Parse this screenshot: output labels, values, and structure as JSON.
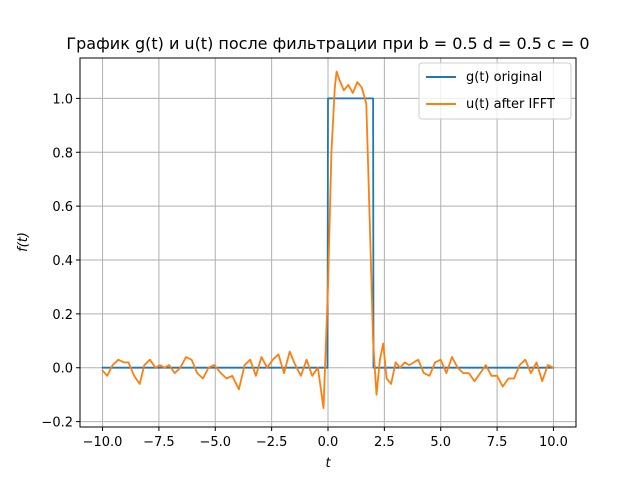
{
  "chart_data": {
    "type": "line",
    "title": "График g(t) и u(t) после фильтрации при b = 0.5 d = 0.5 c = 0",
    "xlabel": "t",
    "ylabel": "f(t)",
    "xlim": [
      -11,
      11
    ],
    "ylim": [
      -0.22,
      1.15
    ],
    "x_ticks": [
      -10,
      -7.5,
      -5,
      -2.5,
      0,
      2.5,
      5,
      7.5,
      10
    ],
    "x_tick_labels": [
      "−10.0",
      "−7.5",
      "−5.0",
      "−2.5",
      "0.0",
      "2.5",
      "5.0",
      "7.5",
      "10.0"
    ],
    "y_ticks": [
      -0.2,
      0,
      0.2,
      0.4,
      0.6,
      0.8,
      1.0
    ],
    "y_tick_labels": [
      "−0.2",
      "0.0",
      "0.2",
      "0.4",
      "0.6",
      "0.8",
      "1.0"
    ],
    "grid": true,
    "legend_position": "top-right",
    "series": [
      {
        "name": "g(t) original",
        "color": "#1f77b4",
        "x": [
          -10,
          -0.02,
          0,
          2,
          2.02,
          10
        ],
        "y": [
          0,
          0,
          1,
          1,
          0,
          0
        ]
      },
      {
        "name": "u(t) after IFFT",
        "color": "#ff7f0e",
        "x": [
          -10,
          -9.8,
          -9.55,
          -9.3,
          -9.05,
          -8.85,
          -8.6,
          -8.35,
          -8.15,
          -7.9,
          -7.65,
          -7.45,
          -7.25,
          -7.05,
          -6.8,
          -6.55,
          -6.3,
          -6.05,
          -5.8,
          -5.55,
          -5.3,
          -5.05,
          -4.75,
          -4.5,
          -4.25,
          -3.95,
          -3.7,
          -3.45,
          -3.2,
          -2.95,
          -2.7,
          -2.45,
          -2.2,
          -1.95,
          -1.7,
          -1.45,
          -1.2,
          -0.95,
          -0.7,
          -0.45,
          -0.2,
          0,
          0.15,
          0.3,
          0.38,
          0.5,
          0.7,
          0.9,
          1.1,
          1.3,
          1.5,
          1.7,
          1.85,
          2.0,
          2.15,
          2.3,
          2.45,
          2.6,
          2.8,
          3.0,
          3.2,
          3.4,
          3.6,
          3.8,
          4.0,
          4.25,
          4.5,
          4.75,
          5.0,
          5.25,
          5.5,
          5.75,
          6.0,
          6.25,
          6.5,
          6.75,
          7.0,
          7.25,
          7.5,
          7.75,
          8.0,
          8.25,
          8.5,
          8.75,
          9.0,
          9.25,
          9.5,
          9.75,
          10.0
        ],
        "y": [
          -0.01,
          -0.03,
          0.01,
          0.03,
          0.02,
          0.02,
          -0.03,
          -0.06,
          0.01,
          0.03,
          0.0,
          0.01,
          0.0,
          0.01,
          -0.02,
          0.0,
          0.04,
          0.03,
          -0.02,
          -0.04,
          0.0,
          0.01,
          -0.02,
          -0.04,
          -0.03,
          -0.08,
          0.01,
          0.03,
          -0.03,
          0.04,
          0.0,
          0.03,
          0.05,
          -0.02,
          0.06,
          0.01,
          -0.03,
          0.03,
          -0.03,
          0.0,
          -0.15,
          0.3,
          0.8,
          1.04,
          1.1,
          1.07,
          1.03,
          1.05,
          1.02,
          1.06,
          1.04,
          0.98,
          0.55,
          0.1,
          -0.1,
          0.03,
          0.09,
          -0.04,
          -0.06,
          0.02,
          0.0,
          0.02,
          0.01,
          0.02,
          0.03,
          -0.02,
          -0.03,
          0.02,
          0.03,
          -0.02,
          0.04,
          0.0,
          -0.02,
          -0.02,
          -0.05,
          -0.02,
          0.01,
          -0.03,
          -0.03,
          -0.07,
          -0.04,
          -0.04,
          0.01,
          0.03,
          -0.02,
          0.02,
          -0.05,
          0.01,
          0.0
        ]
      }
    ]
  }
}
